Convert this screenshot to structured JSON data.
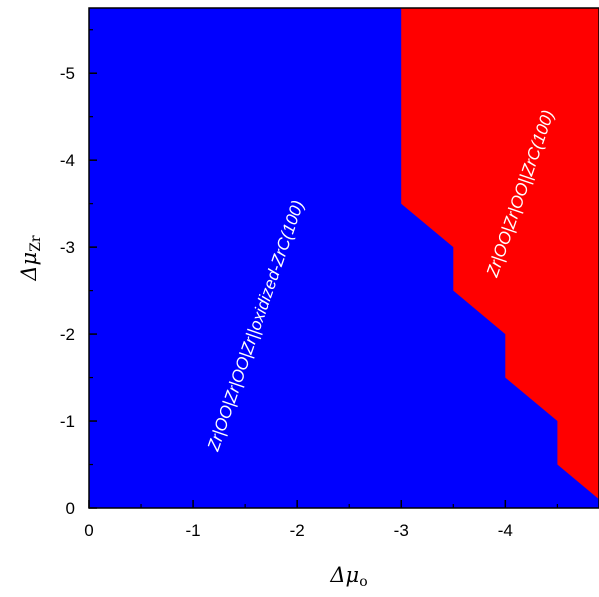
{
  "chart_data": {
    "type": "area",
    "title": "",
    "xlabel": {
      "main": "Δμ",
      "sub": "o"
    },
    "ylabel": {
      "main": "Δμ",
      "sub": "Zr"
    },
    "xlim": [
      0,
      -4.9
    ],
    "ylim": [
      0,
      -5.75
    ],
    "x_ticks": [
      0,
      -1,
      -2,
      -3,
      -4
    ],
    "x_tick_labels": [
      "0",
      "-1",
      "-2",
      "-3",
      "-4"
    ],
    "y_ticks": [
      0,
      -1,
      -2,
      -3,
      -4,
      -5
    ],
    "y_tick_labels": [
      "0",
      "-1",
      "-2",
      "-3",
      "-4",
      "-5"
    ],
    "grid": false,
    "regions": [
      {
        "name": "Zr|OO|Zr|OO|Zr||oxidized-ZrC(100)",
        "color": "#0000ff",
        "label": "Zr|OO|Zr|OO|Zr||oxidized-ZrC(100)"
      },
      {
        "name": "Zr|OO|Zr|OO||ZrC(100)",
        "color": "#ff0000",
        "label": "Zr|OO|Zr|OO||ZrC(100)"
      }
    ],
    "boundary": [
      [
        -4.9,
        0.1
      ],
      [
        -4.5,
        0.5
      ],
      [
        -4.5,
        1.0
      ],
      [
        -4.0,
        1.5
      ],
      [
        -4.0,
        2.0
      ],
      [
        -3.5,
        2.5
      ],
      [
        -3.5,
        3.0
      ],
      [
        -3.0,
        3.5
      ],
      [
        -3.0,
        5.75
      ]
    ]
  }
}
